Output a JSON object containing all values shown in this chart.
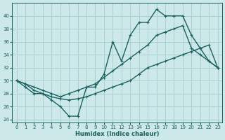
{
  "xlabel": "Humidex (Indice chaleur)",
  "bg_color": "#cce8e8",
  "grid_color": "#aad0d0",
  "line_color": "#1a6060",
  "xlim": [
    -0.5,
    23.5
  ],
  "ylim": [
    23.5,
    42.0
  ],
  "xticks": [
    0,
    1,
    2,
    3,
    4,
    5,
    6,
    7,
    8,
    9,
    10,
    11,
    12,
    13,
    14,
    15,
    16,
    17,
    18,
    19,
    20,
    21,
    22,
    23
  ],
  "yticks": [
    24,
    26,
    28,
    30,
    32,
    34,
    36,
    38,
    40
  ],
  "line1_x": [
    0,
    1,
    2,
    3,
    4,
    5,
    6,
    7,
    8,
    9,
    10,
    11,
    12,
    13,
    14,
    15,
    16,
    17,
    18,
    19,
    20,
    21,
    22,
    23
  ],
  "line1_y": [
    30,
    29,
    28,
    28,
    27,
    26,
    24.5,
    24.5,
    29,
    29,
    31,
    36,
    33,
    37,
    39,
    39,
    41,
    40,
    40,
    40,
    37,
    35,
    33,
    32
  ],
  "line2_x": [
    0,
    1,
    2,
    3,
    4,
    5,
    6,
    7,
    8,
    9,
    10,
    11,
    12,
    13,
    14,
    15,
    16,
    17,
    18,
    19,
    20,
    21,
    22,
    23
  ],
  "line2_y": [
    30,
    29.5,
    29,
    28.5,
    28.0,
    27.5,
    28,
    28.5,
    29,
    29.5,
    30.5,
    31.5,
    32.5,
    33.5,
    34.5,
    35.5,
    37,
    37.5,
    38,
    38.5,
    35,
    34,
    33,
    32
  ],
  "line3_x": [
    0,
    1,
    2,
    3,
    4,
    5,
    6,
    7,
    8,
    9,
    10,
    11,
    12,
    13,
    14,
    15,
    16,
    17,
    18,
    19,
    20,
    21,
    22,
    23
  ],
  "line3_y": [
    30,
    29.5,
    28.5,
    28,
    27.5,
    27.2,
    27,
    27.2,
    27.5,
    28,
    28.5,
    29,
    29.5,
    30,
    31,
    32,
    32.5,
    33,
    33.5,
    34,
    34.5,
    35,
    35.5,
    32
  ],
  "linewidth": 1.0,
  "markersize": 3.5
}
